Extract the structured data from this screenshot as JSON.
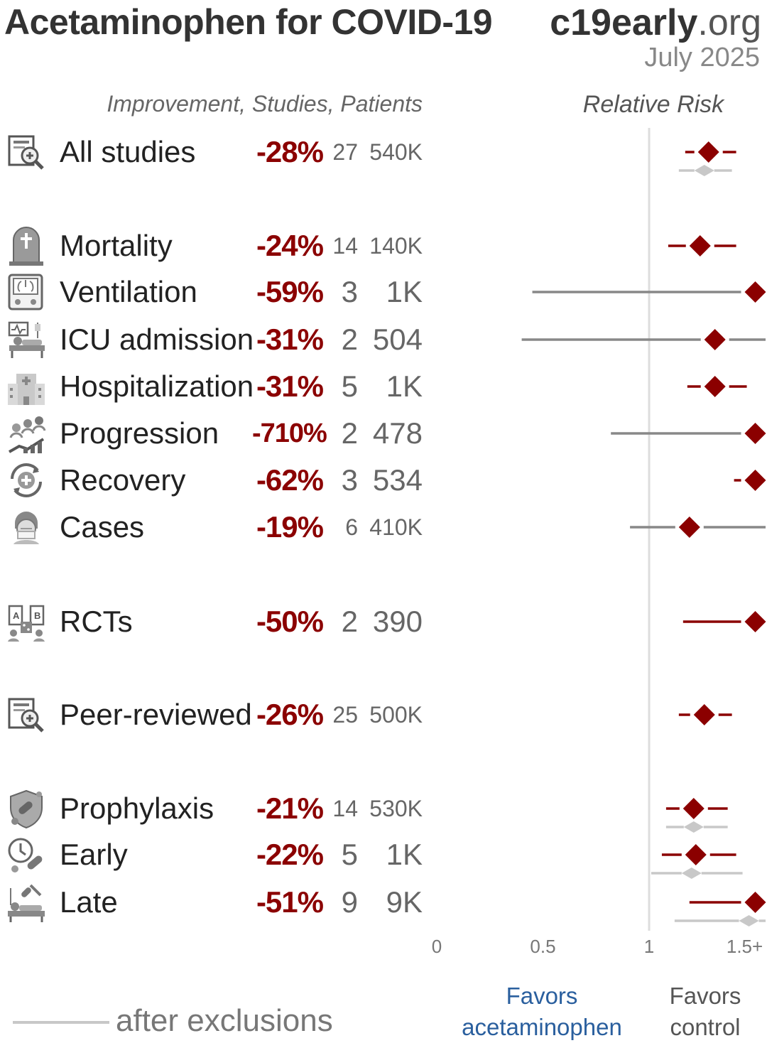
{
  "header": {
    "title": "Acetaminophen for COVID-19",
    "site_main": "c19early",
    "site_tld": ".org",
    "date": "July 2025"
  },
  "columns": {
    "left": "Improvement, Studies, Patients",
    "right": "Relative Risk"
  },
  "rows": [
    {
      "icon": "all-studies-icon",
      "label": "All studies",
      "improvement": "-28%",
      "studies": "27",
      "patients": "540K"
    },
    {
      "icon": "mortality-icon",
      "label": "Mortality",
      "improvement": "-24%",
      "studies": "14",
      "patients": "140K"
    },
    {
      "icon": "ventilation-icon",
      "label": "Ventilation",
      "improvement": "-59%",
      "studies": "3",
      "patients": "1K"
    },
    {
      "icon": "icu-admission-icon",
      "label": "ICU admission",
      "improvement": "-31%",
      "studies": "2",
      "patients": "504"
    },
    {
      "icon": "hospitalization-icon",
      "label": "Hospitalization",
      "improvement": "-31%",
      "studies": "5",
      "patients": "1K"
    },
    {
      "icon": "progression-icon",
      "label": "Progression",
      "improvement": "-710%",
      "studies": "2",
      "patients": "478"
    },
    {
      "icon": "recovery-icon",
      "label": "Recovery",
      "improvement": "-62%",
      "studies": "3",
      "patients": "534"
    },
    {
      "icon": "cases-icon",
      "label": "Cases",
      "improvement": "-19%",
      "studies": "6",
      "patients": "410K"
    },
    {
      "icon": "rcts-icon",
      "label": "RCTs",
      "improvement": "-50%",
      "studies": "2",
      "patients": "390"
    },
    {
      "icon": "peer-reviewed-icon",
      "label": "Peer-reviewed",
      "improvement": "-26%",
      "studies": "25",
      "patients": "500K"
    },
    {
      "icon": "prophylaxis-icon",
      "label": "Prophylaxis",
      "improvement": "-21%",
      "studies": "14",
      "patients": "530K"
    },
    {
      "icon": "early-treatment-icon",
      "label": "Early",
      "improvement": "-22%",
      "studies": "5",
      "patients": "1K"
    },
    {
      "icon": "late-treatment-icon",
      "label": "Late",
      "improvement": "-51%",
      "studies": "9",
      "patients": "9K"
    }
  ],
  "chart_data": {
    "type": "forest",
    "xlabel": "Relative Risk",
    "xlim": [
      0,
      1.55
    ],
    "ticks": [
      "0",
      "0.5",
      "1",
      "1.5+"
    ],
    "tick_values": [
      0,
      0.5,
      1,
      1.45
    ],
    "reference_line": 1,
    "colors": {
      "main": "#8b0000",
      "wide_ci": "#888888",
      "exclusions": "#c8c8c8",
      "reference": "#dddddd"
    },
    "series": [
      {
        "row": "All studies",
        "rr": 1.28,
        "ci": [
          1.17,
          1.41
        ],
        "after_exclusions": {
          "rr": 1.26,
          "ci": [
            1.14,
            1.39
          ]
        }
      },
      {
        "row": "Mortality",
        "rr": 1.24,
        "ci": [
          1.09,
          1.41
        ]
      },
      {
        "row": "Ventilation",
        "rr": 1.5,
        "ci": [
          0.45,
          1.55
        ]
      },
      {
        "row": "ICU admission",
        "rr": 1.31,
        "ci": [
          0.4,
          1.55
        ]
      },
      {
        "row": "Hospitalization",
        "rr": 1.31,
        "ci": [
          1.18,
          1.46
        ]
      },
      {
        "row": "Progression",
        "rr": 1.5,
        "ci": [
          0.82,
          1.55
        ]
      },
      {
        "row": "Recovery",
        "rr": 1.5,
        "ci": [
          1.4,
          1.55
        ]
      },
      {
        "row": "Cases",
        "rr": 1.19,
        "ci": [
          0.91,
          1.55
        ]
      },
      {
        "row": "RCTs",
        "rr": 1.5,
        "ci": [
          1.16,
          1.55
        ]
      },
      {
        "row": "Peer-reviewed",
        "rr": 1.26,
        "ci": [
          1.14,
          1.39
        ]
      },
      {
        "row": "Prophylaxis",
        "rr": 1.21,
        "ci": [
          1.08,
          1.37
        ],
        "after_exclusions": {
          "rr": 1.21,
          "ci": [
            1.08,
            1.37
          ]
        }
      },
      {
        "row": "Early",
        "rr": 1.22,
        "ci": [
          1.06,
          1.41
        ],
        "after_exclusions": {
          "rr": 1.2,
          "ci": [
            1.01,
            1.44
          ]
        }
      },
      {
        "row": "Late",
        "rr": 1.5,
        "ci": [
          1.19,
          1.55
        ],
        "after_exclusions": {
          "rr": 1.47,
          "ci": [
            1.12,
            1.55
          ]
        }
      }
    ]
  },
  "footer": {
    "legend_text": "after exclusions",
    "favors_left_1": "Favors",
    "favors_left_2": "acetaminophen",
    "favors_right_1": "Favors",
    "favors_right_2": "control"
  }
}
